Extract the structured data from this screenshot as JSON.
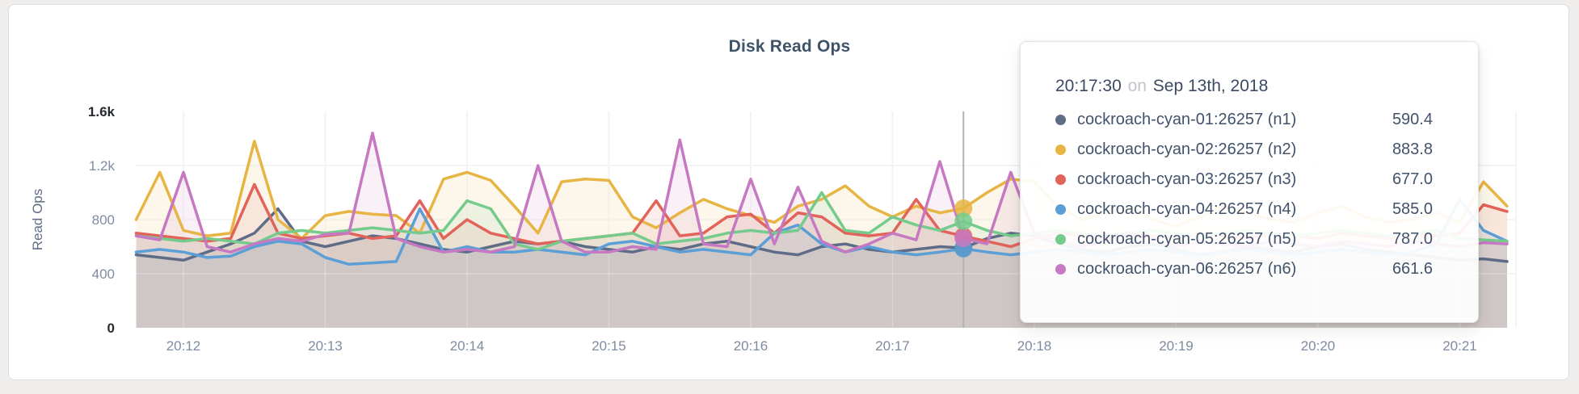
{
  "page": {
    "background_color": "#efeeec",
    "card_background_color": "#ffffff"
  },
  "chart_data": {
    "type": "area",
    "title": "Disk Read Ops",
    "ylabel": "Read Ops",
    "ylim": [
      0,
      1600
    ],
    "grid": true,
    "y_ticks": [
      {
        "value": 0,
        "label": "0",
        "emphasized": true
      },
      {
        "value": 400,
        "label": "400",
        "emphasized": false
      },
      {
        "value": 800,
        "label": "800",
        "emphasized": false
      },
      {
        "value": 1200,
        "label": "1.2k",
        "emphasized": false
      },
      {
        "value": 1600,
        "label": "1.6k",
        "emphasized": true
      }
    ],
    "x_start_time": "20:11:40",
    "x_step_seconds": 10,
    "x_ticks": [
      {
        "label": "20:12",
        "seconds_after_start": 20
      },
      {
        "label": "20:13",
        "seconds_after_start": 80
      },
      {
        "label": "20:14",
        "seconds_after_start": 140
      },
      {
        "label": "20:15",
        "seconds_after_start": 200
      },
      {
        "label": "20:16",
        "seconds_after_start": 260
      },
      {
        "label": "20:17",
        "seconds_after_start": 320
      },
      {
        "label": "20:18",
        "seconds_after_start": 380
      },
      {
        "label": "20:19",
        "seconds_after_start": 440
      },
      {
        "label": "20:20",
        "seconds_after_start": 500
      },
      {
        "label": "20:21",
        "seconds_after_start": 560
      }
    ],
    "hover": {
      "time": "20:17:30",
      "seconds_after_start": 350,
      "highlight_values": {
        "n1": 590.4,
        "n2": 883.8,
        "n3": 677.0,
        "n4": 585.0,
        "n5": 787.0,
        "n6": 661.6
      }
    },
    "series": [
      {
        "name": "cockroach-cyan-01:26257 (n1)",
        "node_id": "n1",
        "color": "#5f6c87",
        "values": [
          540,
          520,
          500,
          560,
          620,
          700,
          880,
          640,
          600,
          640,
          680,
          660,
          620,
          580,
          560,
          600,
          640,
          620,
          640,
          600,
          580,
          560,
          600,
          580,
          620,
          640,
          600,
          560,
          540,
          600,
          620,
          580,
          560,
          580,
          600,
          590.4,
          660,
          700,
          680,
          620,
          580,
          560,
          600,
          620,
          580,
          540,
          560,
          600,
          580,
          560,
          600,
          620,
          580,
          560,
          540,
          520,
          500,
          510,
          490
        ]
      },
      {
        "name": "cockroach-cyan-02:26257 (n2)",
        "node_id": "n2",
        "color": "#e7b544",
        "values": [
          800,
          1150,
          720,
          680,
          700,
          1380,
          800,
          660,
          830,
          860,
          840,
          830,
          700,
          1100,
          1150,
          1090,
          900,
          700,
          1080,
          1100,
          1090,
          820,
          740,
          850,
          950,
          880,
          830,
          780,
          900,
          950,
          1050,
          900,
          820,
          900,
          850,
          883.8,
          1000,
          1100,
          1080,
          900,
          800,
          850,
          900,
          800,
          750,
          820,
          900,
          850,
          800,
          780,
          850,
          900,
          820,
          780,
          800,
          850,
          780,
          1080,
          900
        ]
      },
      {
        "name": "cockroach-cyan-03:26257 (n3)",
        "node_id": "n3",
        "color": "#e2635a",
        "values": [
          700,
          680,
          660,
          640,
          660,
          1060,
          700,
          660,
          680,
          700,
          660,
          680,
          940,
          660,
          800,
          700,
          660,
          620,
          640,
          660,
          680,
          700,
          940,
          680,
          700,
          820,
          840,
          700,
          850,
          820,
          700,
          680,
          700,
          950,
          720,
          677,
          640,
          600,
          660,
          700,
          680,
          660,
          700,
          680,
          660,
          700,
          680,
          660,
          700,
          680,
          660,
          700,
          680,
          660,
          700,
          680,
          700,
          910,
          860
        ]
      },
      {
        "name": "cockroach-cyan-04:26257 (n4)",
        "node_id": "n4",
        "color": "#5b9fd6",
        "values": [
          560,
          580,
          560,
          520,
          530,
          600,
          640,
          620,
          520,
          470,
          480,
          490,
          880,
          560,
          600,
          560,
          560,
          580,
          560,
          540,
          620,
          640,
          600,
          560,
          580,
          560,
          540,
          700,
          760,
          620,
          560,
          600,
          560,
          540,
          560,
          585,
          560,
          540,
          560,
          580,
          560,
          540,
          560,
          580,
          560,
          540,
          560,
          580,
          560,
          540,
          560,
          580,
          560,
          540,
          560,
          620,
          950,
          720,
          640
        ]
      },
      {
        "name": "cockroach-cyan-05:26257 (n5)",
        "node_id": "n5",
        "color": "#74cb8c",
        "values": [
          680,
          660,
          640,
          660,
          640,
          620,
          700,
          720,
          700,
          720,
          740,
          720,
          700,
          720,
          940,
          880,
          620,
          580,
          640,
          660,
          680,
          700,
          620,
          640,
          660,
          700,
          720,
          700,
          720,
          1000,
          720,
          700,
          820,
          760,
          720,
          787,
          720,
          680,
          700,
          720,
          700,
          680,
          700,
          720,
          700,
          680,
          700,
          720,
          700,
          680,
          700,
          720,
          700,
          680,
          700,
          720,
          660,
          650,
          640
        ]
      },
      {
        "name": "cockroach-cyan-06:26257 (n6)",
        "node_id": "n6",
        "color": "#c778c2",
        "values": [
          680,
          650,
          1150,
          600,
          560,
          620,
          660,
          640,
          690,
          700,
          1440,
          660,
          600,
          560,
          580,
          560,
          600,
          1200,
          640,
          560,
          560,
          600,
          580,
          1390,
          620,
          600,
          1100,
          620,
          1040,
          640,
          560,
          620,
          700,
          650,
          1230,
          661.6,
          620,
          1150,
          700,
          650,
          600,
          640,
          700,
          650,
          600,
          640,
          620,
          600,
          640,
          620,
          600,
          640,
          620,
          600,
          640,
          620,
          600,
          630,
          620
        ]
      }
    ]
  },
  "tooltip": {
    "time": "20:17:30",
    "preposition": "on",
    "date": "Sep 13th, 2018",
    "rows": [
      {
        "label": "cockroach-cyan-01:26257 (n1)",
        "value": "590.4",
        "color": "#5f6c87"
      },
      {
        "label": "cockroach-cyan-02:26257 (n2)",
        "value": "883.8",
        "color": "#e7b544"
      },
      {
        "label": "cockroach-cyan-03:26257 (n3)",
        "value": "677.0",
        "color": "#e2635a"
      },
      {
        "label": "cockroach-cyan-04:26257 (n4)",
        "value": "585.0",
        "color": "#5b9fd6"
      },
      {
        "label": "cockroach-cyan-05:26257 (n5)",
        "value": "787.0",
        "color": "#74cb8c"
      },
      {
        "label": "cockroach-cyan-06:26257 (n6)",
        "value": "661.6",
        "color": "#c778c2"
      }
    ]
  },
  "style": {
    "grid_color": "#eaeaea",
    "grid_overlay_color": "rgba(255,255,255,0.4)",
    "hover_line_color": "#b3b3b3",
    "axis_tick_color": "#7e8ca2",
    "axis_tick_emphasized_color": "#26292e",
    "axis_label_color": "#5f6c87",
    "fill_opacity": 0.11,
    "line_width": 3.5
  }
}
